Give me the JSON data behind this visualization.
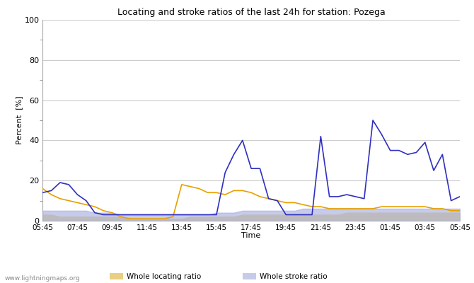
{
  "title": "Locating and stroke ratios of the last 24h for station: Pozega",
  "ylabel": "Percent  [%]",
  "xlabel": "Time",
  "watermark": "www.lightningmaps.org",
  "ylim": [
    0,
    100
  ],
  "x_labels": [
    "05:45",
    "07:45",
    "09:45",
    "11:45",
    "13:45",
    "15:45",
    "17:45",
    "19:45",
    "21:45",
    "23:45",
    "01:45",
    "03:45",
    "05:45"
  ],
  "colors": {
    "whole_locating": "#e8d080",
    "whole_stroke": "#a8b0e0",
    "locating_station": "#e8a000",
    "stroke_station": "#3030c0"
  },
  "x_values": [
    0,
    1,
    2,
    3,
    4,
    5,
    6,
    7,
    8,
    9,
    10,
    11,
    12,
    13,
    14,
    15,
    16,
    17,
    18,
    19,
    20,
    21,
    22,
    23,
    24,
    25,
    26,
    27,
    28,
    29,
    30,
    31,
    32,
    33,
    34,
    35,
    36,
    37,
    38,
    39,
    40,
    41,
    42,
    43,
    44,
    45,
    46,
    47,
    48
  ],
  "whole_locating": [
    3,
    3,
    2,
    2,
    2,
    2,
    2,
    2,
    2,
    2,
    1,
    1,
    1,
    1,
    1,
    1,
    1,
    2,
    2,
    2,
    2,
    2,
    2,
    3,
    3,
    3,
    3,
    3,
    3,
    3,
    3,
    3,
    3,
    3,
    3,
    4,
    4,
    4,
    4,
    4,
    4,
    4,
    4,
    4,
    4,
    4,
    4,
    4,
    4
  ],
  "whole_stroke": [
    5,
    5,
    5,
    5,
    5,
    5,
    4,
    4,
    4,
    3,
    3,
    3,
    3,
    3,
    3,
    3,
    3,
    3,
    3,
    3,
    4,
    4,
    4,
    5,
    5,
    5,
    5,
    5,
    5,
    5,
    6,
    6,
    6,
    6,
    6,
    6,
    6,
    6,
    6,
    6,
    6,
    6,
    6,
    6,
    6,
    6,
    6,
    6,
    6
  ],
  "locating_station": [
    16,
    13,
    11,
    10,
    9,
    8,
    7,
    5,
    4,
    2,
    1,
    1,
    1,
    1,
    1,
    2,
    18,
    17,
    16,
    14,
    14,
    13,
    15,
    15,
    14,
    12,
    11,
    10,
    9,
    9,
    8,
    7,
    7,
    6,
    6,
    6,
    6,
    6,
    6,
    7,
    7,
    7,
    7,
    7,
    7,
    6,
    6,
    5,
    5
  ],
  "stroke_station": [
    14,
    15,
    19,
    18,
    13,
    10,
    4,
    3,
    3,
    3,
    3,
    3,
    3,
    3,
    3,
    3,
    3,
    3,
    3,
    3,
    3,
    24,
    33,
    40,
    26,
    26,
    11,
    10,
    3,
    3,
    3,
    3,
    42,
    12,
    12,
    13,
    12,
    11,
    50,
    43,
    35,
    35,
    33,
    34,
    39,
    25,
    33,
    10,
    12
  ]
}
